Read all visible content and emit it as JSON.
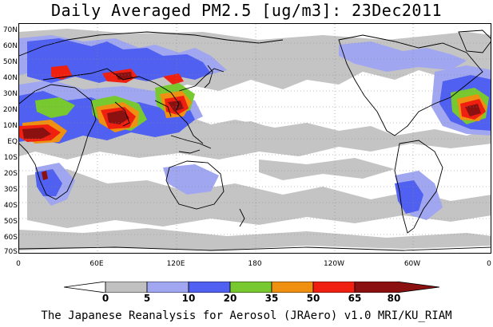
{
  "title": "Daily Averaged PM2.5 [ug/m3]: 23Dec2011",
  "footer": "The Japanese Reanalysis for Aerosol (JRAero) v1.0 MRI/KU_RIAM",
  "lat_labels": [
    "70N",
    "60N",
    "50N",
    "40N",
    "30N",
    "20N",
    "10N",
    "EQ",
    "10S",
    "20S",
    "30S",
    "40S",
    "50S",
    "60S",
    "70S"
  ],
  "lon_labels": [
    "0",
    "60E",
    "120E",
    "180",
    "120W",
    "60W",
    "0"
  ],
  "legend": {
    "levels": [
      "0",
      "5",
      "10",
      "20",
      "35",
      "50",
      "65",
      "80"
    ],
    "colors": [
      "#ffffff",
      "#c0c0c0",
      "#a0a6f0",
      "#5060f0",
      "#78c830",
      "#f09010",
      "#f02010",
      "#8b1010"
    ]
  }
}
